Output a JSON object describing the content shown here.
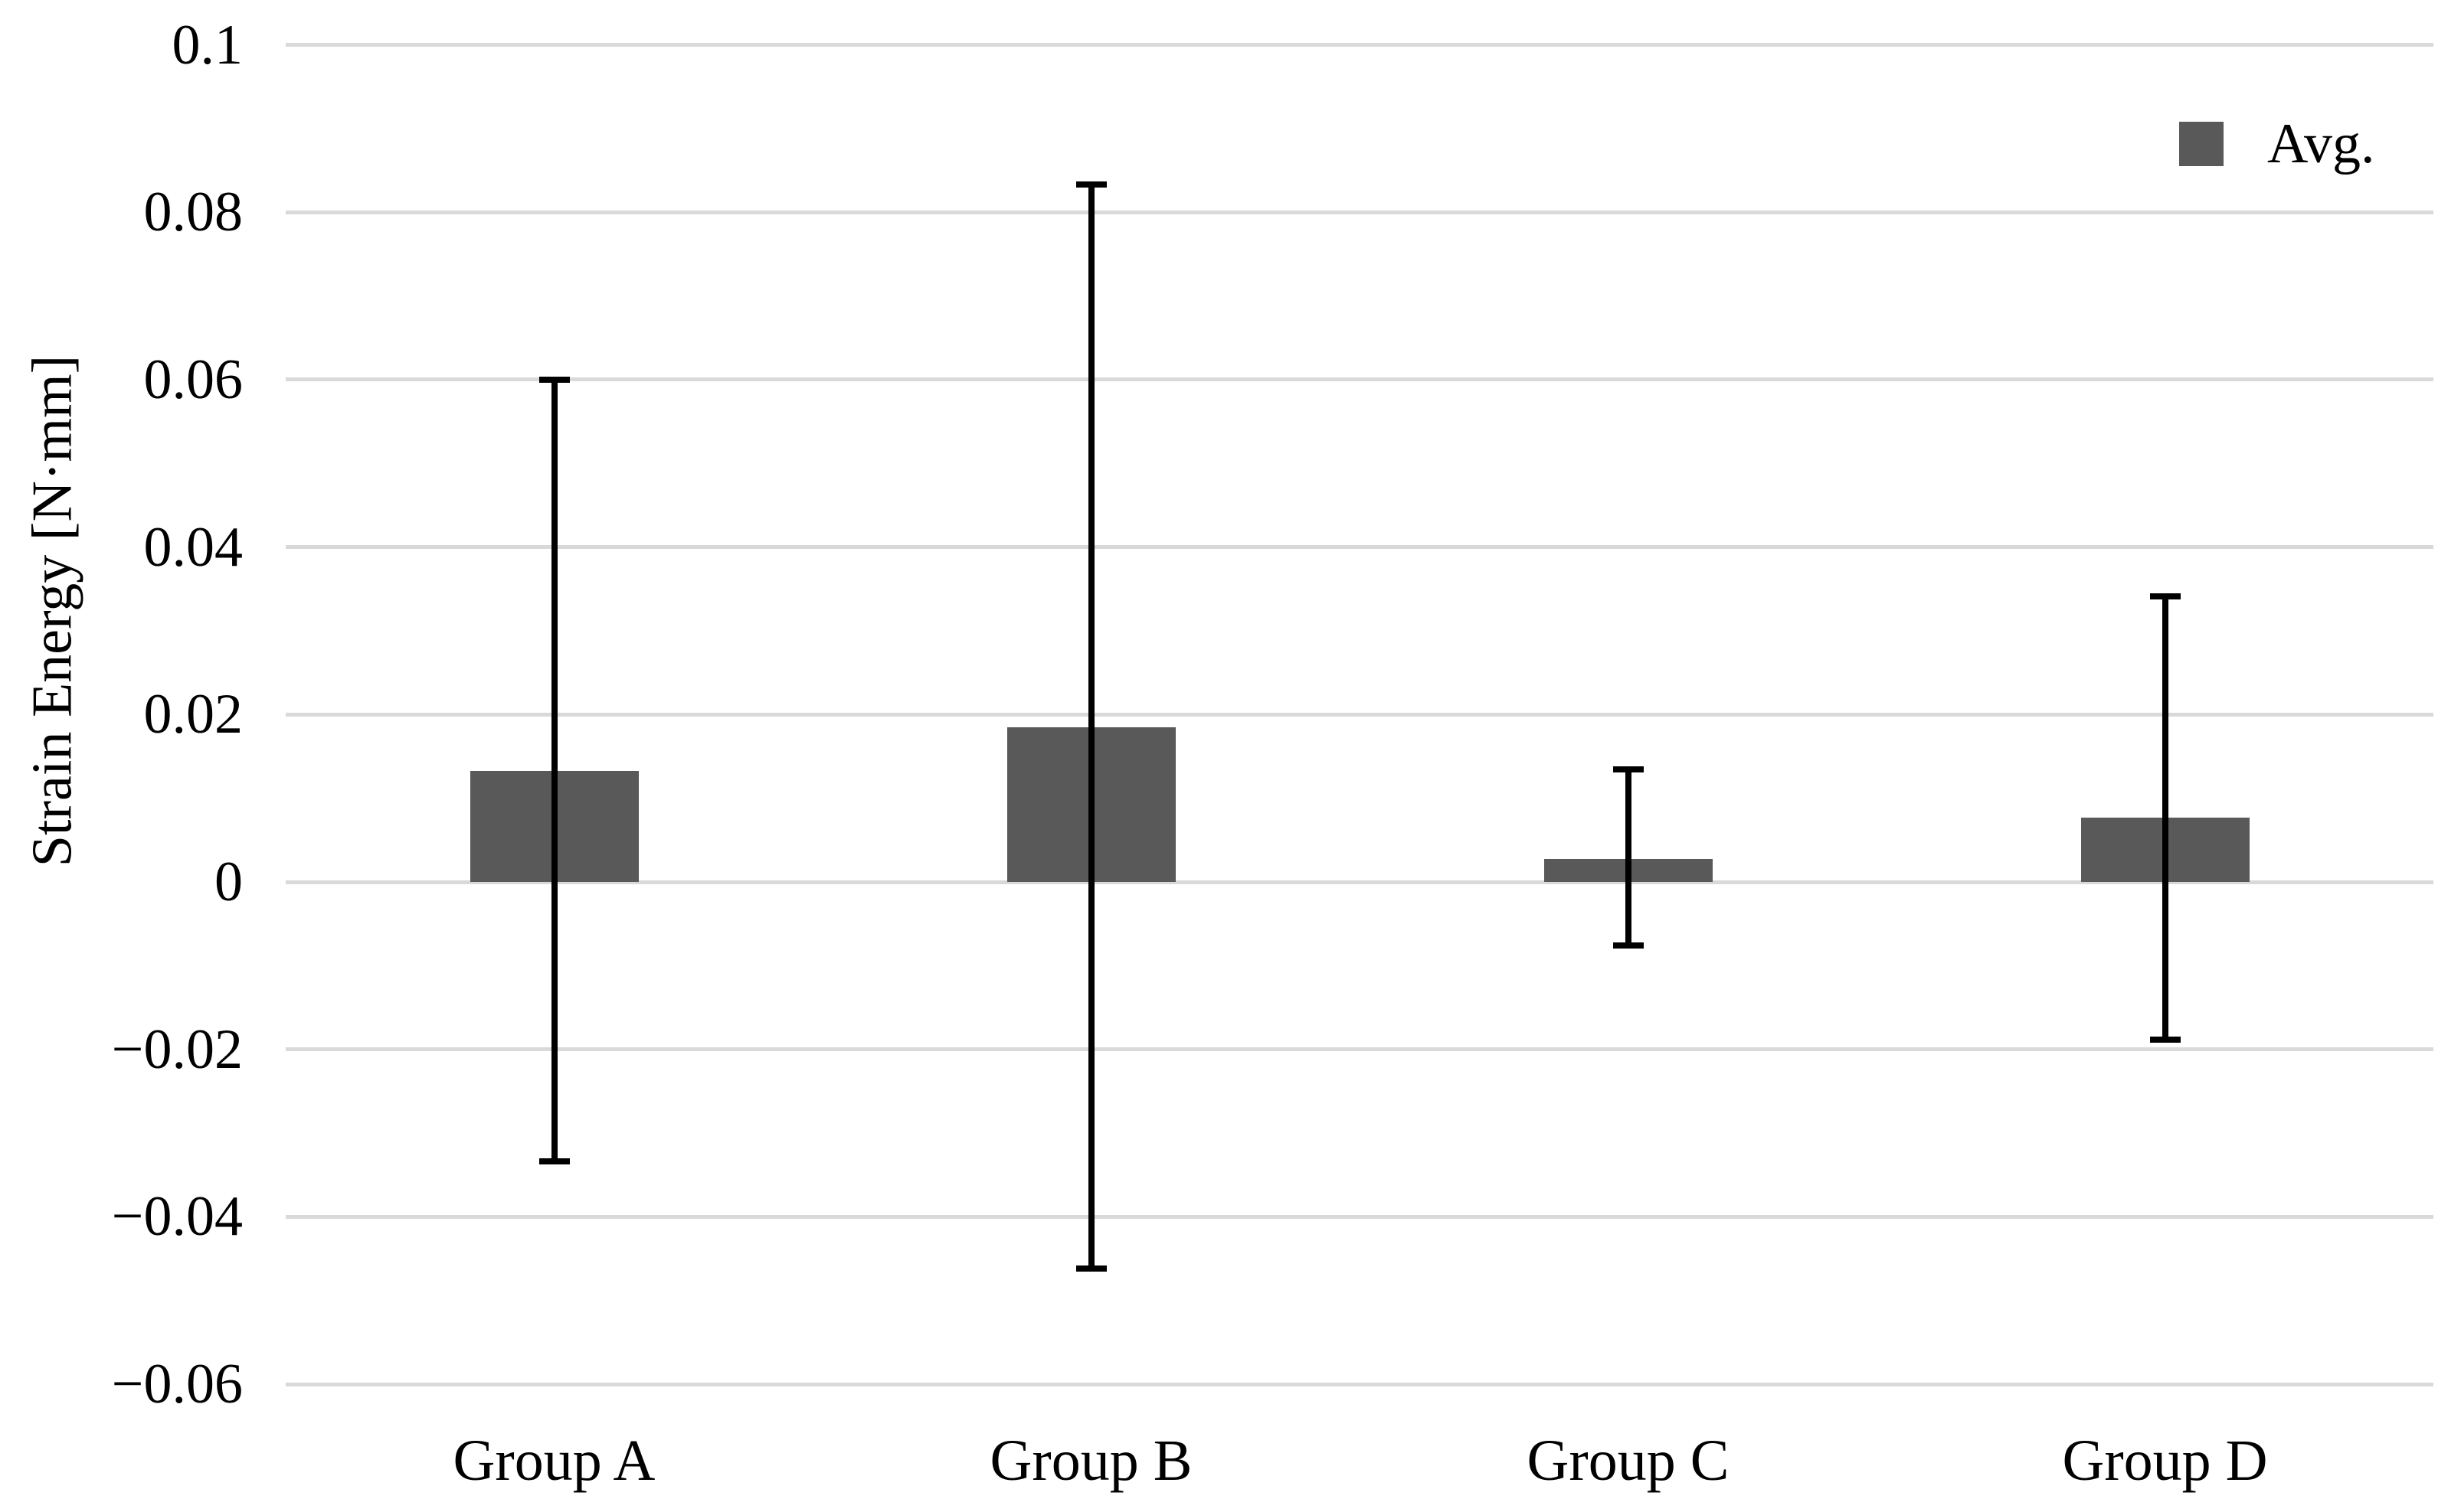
{
  "chart_data": {
    "type": "bar",
    "title": "",
    "xlabel": "",
    "ylabel": "Strain Energy [N·mm]",
    "categories": [
      "Group A",
      "Group B",
      "Group C",
      "Group D"
    ],
    "series": [
      {
        "name": "Avg.",
        "values": [
          0.0133,
          0.0185,
          0.0027,
          0.0077
        ],
        "error_high": [
          0.06,
          0.0833,
          0.0134,
          0.0341
        ],
        "error_low": [
          -0.0334,
          -0.0462,
          -0.0076,
          -0.0188
        ]
      }
    ],
    "ylim": [
      -0.06,
      0.1
    ],
    "ytick_values": [
      0.1,
      0.08,
      0.06,
      0.04,
      0.02,
      0,
      -0.02,
      -0.04,
      -0.06
    ],
    "ytick_labels": [
      "0.1",
      "0.08",
      "0.06",
      "0.04",
      "0.02",
      "0",
      "−0.02",
      "−0.04",
      "−0.06"
    ],
    "grid": "horizontal-only",
    "legend_position": "top-right",
    "colors": {
      "bar_fill": "#595959",
      "error_bar": "#000000",
      "gridline": "#d9d9d9",
      "text": "#000000",
      "background": "#ffffff"
    }
  }
}
